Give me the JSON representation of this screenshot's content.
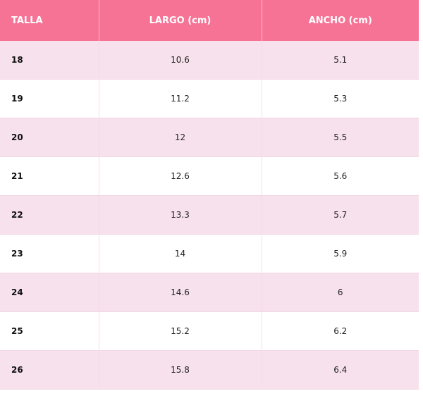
{
  "table": {
    "headers": [
      "TALLA",
      "LARGO (cm)",
      "ANCHO (cm)"
    ],
    "rows": [
      [
        "18",
        "10.6",
        "5.1"
      ],
      [
        "19",
        "11.2",
        "5.3"
      ],
      [
        "20",
        "12",
        "5.5"
      ],
      [
        "21",
        "12.6",
        "5.6"
      ],
      [
        "22",
        "13.3",
        "5.7"
      ],
      [
        "23",
        "14",
        "5.9"
      ],
      [
        "24",
        "14.6",
        "6"
      ],
      [
        "25",
        "15.2",
        "6.2"
      ],
      [
        "26",
        "15.8",
        "6.4"
      ]
    ]
  },
  "colors": {
    "header_bg": "#f77396",
    "row_alt_bg": "#f7e1ec",
    "row_bg": "#ffffff"
  }
}
